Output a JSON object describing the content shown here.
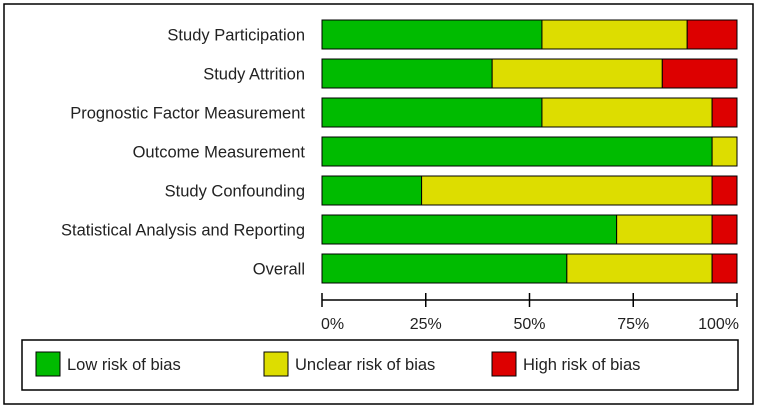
{
  "chart_data": {
    "type": "bar",
    "orientation": "horizontal",
    "stacked": true,
    "percent_scale": true,
    "categories": [
      "Study Participation",
      "Study Attrition",
      "Prognostic Factor Measurement",
      "Outcome Measurement",
      "Study Confounding",
      "Statistical Analysis and Reporting",
      "Overall"
    ],
    "series": [
      {
        "name": "Low risk of bias",
        "color": "#00bb00",
        "values": [
          53,
          41,
          53,
          94,
          24,
          71,
          59
        ]
      },
      {
        "name": "Unclear risk of bias",
        "color": "#dddd00",
        "values": [
          35,
          41,
          41,
          6,
          70,
          23,
          35
        ]
      },
      {
        "name": "High risk of bias",
        "color": "#dd0000",
        "values": [
          12,
          18,
          6,
          0,
          6,
          6,
          6
        ]
      }
    ],
    "xlim": [
      0,
      100
    ],
    "xticks": [
      "0%",
      "25%",
      "50%",
      "75%",
      "100%"
    ],
    "legend_position": "bottom",
    "grid": false,
    "title": "",
    "xlabel": "",
    "ylabel": ""
  }
}
